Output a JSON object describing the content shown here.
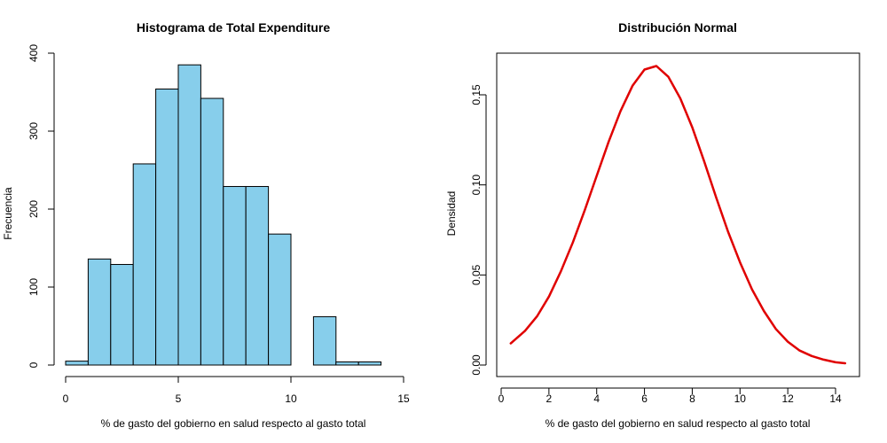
{
  "chart_data": [
    {
      "type": "bar",
      "title": "Histograma de Total Expenditure",
      "xlabel": "% de gasto del gobierno en salud respecto al gasto total",
      "ylabel": "Frecuencia",
      "bin_edges": [
        0,
        1,
        2,
        3,
        4,
        5,
        6,
        7,
        8,
        9,
        10,
        11,
        12,
        13,
        14
      ],
      "values": [
        5,
        136,
        129,
        258,
        354,
        385,
        342,
        229,
        229,
        168,
        0,
        62,
        4,
        4
      ],
      "xlim": [
        0,
        15
      ],
      "ylim": [
        0,
        400
      ],
      "xticks": [
        "0",
        "5",
        "10",
        "15"
      ],
      "yticks": [
        "0",
        "100",
        "200",
        "300",
        "400"
      ],
      "bar_color": "#87CEEB",
      "grid": false
    },
    {
      "type": "line",
      "title": "Distribución Normal",
      "xlabel": "% de gasto del gobierno en salud respecto al gasto total",
      "ylabel": "Densidad",
      "x": [
        0.4,
        1.0,
        1.5,
        2.0,
        2.5,
        3.0,
        3.5,
        4.0,
        4.5,
        5.0,
        5.5,
        6.0,
        6.5,
        7.0,
        7.5,
        8.0,
        8.5,
        9.0,
        9.5,
        10.0,
        10.5,
        11.0,
        11.5,
        12.0,
        12.5,
        13.0,
        13.5,
        14.0,
        14.4
      ],
      "y": [
        0.012,
        0.019,
        0.027,
        0.038,
        0.052,
        0.068,
        0.086,
        0.105,
        0.124,
        0.141,
        0.155,
        0.164,
        0.166,
        0.16,
        0.148,
        0.132,
        0.113,
        0.093,
        0.074,
        0.057,
        0.042,
        0.03,
        0.02,
        0.013,
        0.008,
        0.005,
        0.003,
        0.0015,
        0.001
      ],
      "xlim": [
        0,
        15
      ],
      "ylim": [
        0,
        0.17
      ],
      "xticks": [
        "0",
        "2",
        "4",
        "6",
        "8",
        "10",
        "12",
        "14"
      ],
      "yticks": [
        "0.00",
        "0.05",
        "0.10",
        "0.15"
      ],
      "line_color": "#E00000",
      "grid": false
    }
  ]
}
